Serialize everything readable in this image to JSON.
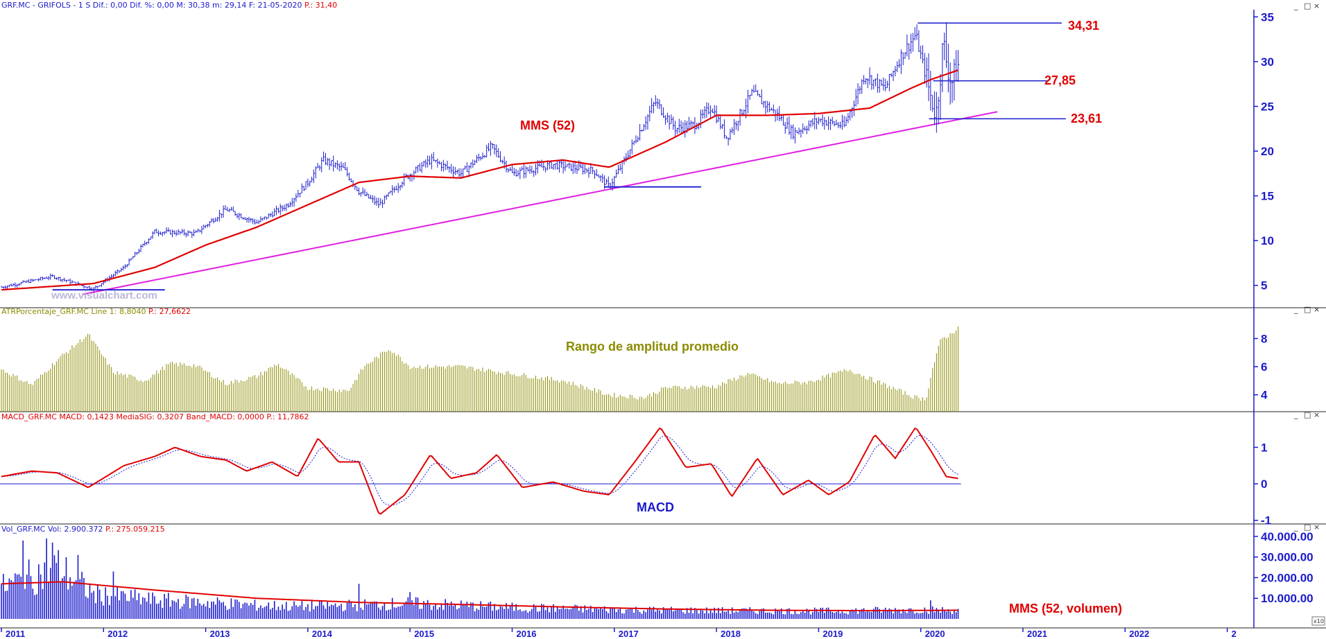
{
  "panels": {
    "price": {
      "header_prefix": "GRF.MC - GRIFOLS -  1 S  Dif.: 0,00  Dif. %: 0,00  M: 30,38  m: 29,14  F: 21-05-2020",
      "header_suffix": "P.: 31,40",
      "watermark": "www.visualchart.com",
      "label_ma": "MMS (52)",
      "level_high": "34,31",
      "level_mid": "27,85",
      "level_low": "23,61"
    },
    "atr": {
      "header_prefix": "ATRPorcentaje_GRF.MC  Line 1: 8,8040",
      "header_suffix": "P.: 27,6622",
      "label": "Rango de amplitud promedio"
    },
    "macd": {
      "header_prefix": "MACD_GRF.MC  MACD: 0,1423  MediaSIG: 0,3207  Band_MACD: 0,0000",
      "header_suffix": "P.: 11,7862",
      "label": "MACD"
    },
    "vol": {
      "header_prefix": "Vol_GRF.MC  Vol: 2.900.372",
      "header_suffix": "P.: 275.059.215",
      "label": "MMS (52, volumen)",
      "scale_marker": "x10"
    }
  },
  "window_controls": [
    "_",
    "□",
    "×"
  ],
  "colors": {
    "price_bars": "#1a1acc",
    "moving_average": "#e00000",
    "trendline": "#e020e0",
    "atr_bars": "#8b8b00",
    "macd_line": "#e00000",
    "macd_signal": "#1a1acc",
    "volume_bars": "#1a1acc",
    "axis_text": "#1a1acc",
    "header_red": "#e00000"
  },
  "chart_data": [
    {
      "type": "candlestick",
      "x_tick_labels": [
        "2011",
        "2012",
        "2013",
        "2014",
        "2015",
        "2016",
        "2017",
        "2018",
        "2019",
        "2020",
        "2021",
        "2022",
        "2"
      ],
      "xlim": [
        "2011-01",
        "2023-01"
      ],
      "ylim": [
        2.5,
        35.8
      ],
      "y_ticks": [
        5,
        10,
        15,
        20,
        25,
        30,
        35
      ],
      "close_anchors": [
        {
          "t": 2011.0,
          "y": 4.8
        },
        {
          "t": 2011.5,
          "y": 6.0
        },
        {
          "t": 2011.9,
          "y": 4.6
        },
        {
          "t": 2012.2,
          "y": 7.0
        },
        {
          "t": 2012.5,
          "y": 11.0
        },
        {
          "t": 2012.9,
          "y": 10.8
        },
        {
          "t": 2013.2,
          "y": 13.5
        },
        {
          "t": 2013.5,
          "y": 12.0
        },
        {
          "t": 2013.8,
          "y": 14.0
        },
        {
          "t": 2014.0,
          "y": 16.5
        },
        {
          "t": 2014.15,
          "y": 19.0
        },
        {
          "t": 2014.35,
          "y": 18.0
        },
        {
          "t": 2014.5,
          "y": 15.5
        },
        {
          "t": 2014.7,
          "y": 14.0
        },
        {
          "t": 2014.95,
          "y": 17.0
        },
        {
          "t": 2015.2,
          "y": 19.0
        },
        {
          "t": 2015.5,
          "y": 17.5
        },
        {
          "t": 2015.8,
          "y": 20.5
        },
        {
          "t": 2016.0,
          "y": 17.5
        },
        {
          "t": 2016.4,
          "y": 18.5
        },
        {
          "t": 2016.8,
          "y": 17.8
        },
        {
          "t": 2016.95,
          "y": 16.0
        },
        {
          "t": 2017.1,
          "y": 19.0
        },
        {
          "t": 2017.4,
          "y": 25.5
        },
        {
          "t": 2017.6,
          "y": 22.5
        },
        {
          "t": 2017.8,
          "y": 23.0
        },
        {
          "t": 2017.95,
          "y": 25.0
        },
        {
          "t": 2018.1,
          "y": 21.5
        },
        {
          "t": 2018.35,
          "y": 26.5
        },
        {
          "t": 2018.6,
          "y": 24.0
        },
        {
          "t": 2018.75,
          "y": 22.0
        },
        {
          "t": 2019.0,
          "y": 23.5
        },
        {
          "t": 2019.25,
          "y": 22.8
        },
        {
          "t": 2019.45,
          "y": 28.5
        },
        {
          "t": 2019.65,
          "y": 27.0
        },
        {
          "t": 2019.8,
          "y": 30.5
        },
        {
          "t": 2019.95,
          "y": 33.0
        },
        {
          "t": 2020.1,
          "y": 26.0
        },
        {
          "t": 2020.15,
          "y": 24.0
        },
        {
          "t": 2020.22,
          "y": 32.0
        },
        {
          "t": 2020.3,
          "y": 27.5
        },
        {
          "t": 2020.38,
          "y": 30.0
        }
      ],
      "ma_anchors": [
        {
          "t": 2011.0,
          "y": 4.5
        },
        {
          "t": 2011.9,
          "y": 5.2
        },
        {
          "t": 2012.5,
          "y": 7.0
        },
        {
          "t": 2013.0,
          "y": 9.5
        },
        {
          "t": 2013.5,
          "y": 11.5
        },
        {
          "t": 2014.0,
          "y": 14.0
        },
        {
          "t": 2014.5,
          "y": 16.5
        },
        {
          "t": 2015.0,
          "y": 17.2
        },
        {
          "t": 2015.5,
          "y": 17.0
        },
        {
          "t": 2016.0,
          "y": 18.5
        },
        {
          "t": 2016.5,
          "y": 19.0
        },
        {
          "t": 2016.95,
          "y": 18.2
        },
        {
          "t": 2017.5,
          "y": 21.0
        },
        {
          "t": 2018.0,
          "y": 24.0
        },
        {
          "t": 2018.5,
          "y": 24.0
        },
        {
          "t": 2019.0,
          "y": 24.2
        },
        {
          "t": 2019.5,
          "y": 24.8
        },
        {
          "t": 2019.9,
          "y": 27.0
        },
        {
          "t": 2020.1,
          "y": 28.0
        },
        {
          "t": 2020.38,
          "y": 29.1
        }
      ],
      "trendline": [
        {
          "t": 2011.8,
          "y": 4.0
        },
        {
          "t": 2020.75,
          "y": 24.4
        }
      ],
      "support_lines": [
        {
          "t0": 2011.5,
          "t1": 2012.6,
          "y": 4.5
        },
        {
          "t0": 2016.9,
          "t1": 2017.85,
          "y": 16.0
        }
      ],
      "levels": [
        {
          "label": "34,31",
          "y": 34.31
        },
        {
          "label": "27,85",
          "y": 27.85
        },
        {
          "label": "23,61",
          "y": 23.61
        }
      ]
    },
    {
      "type": "bar",
      "ylim": [
        2.8,
        9.6
      ],
      "y_ticks": [
        4,
        6,
        8
      ],
      "anchors": [
        {
          "t": 2011.0,
          "y": 5.8
        },
        {
          "t": 2011.3,
          "y": 4.7
        },
        {
          "t": 2011.55,
          "y": 6.5
        },
        {
          "t": 2011.85,
          "y": 8.3
        },
        {
          "t": 2012.1,
          "y": 5.6
        },
        {
          "t": 2012.4,
          "y": 5.0
        },
        {
          "t": 2012.65,
          "y": 6.2
        },
        {
          "t": 2012.9,
          "y": 6.1
        },
        {
          "t": 2013.2,
          "y": 4.8
        },
        {
          "t": 2013.5,
          "y": 5.3
        },
        {
          "t": 2013.7,
          "y": 6.2
        },
        {
          "t": 2014.0,
          "y": 4.5
        },
        {
          "t": 2014.4,
          "y": 4.3
        },
        {
          "t": 2014.55,
          "y": 6.0
        },
        {
          "t": 2014.8,
          "y": 7.3
        },
        {
          "t": 2015.0,
          "y": 6.0
        },
        {
          "t": 2015.5,
          "y": 6.0
        },
        {
          "t": 2016.0,
          "y": 5.5
        },
        {
          "t": 2016.5,
          "y": 5.0
        },
        {
          "t": 2016.95,
          "y": 4.0
        },
        {
          "t": 2017.3,
          "y": 3.8
        },
        {
          "t": 2017.5,
          "y": 4.5
        },
        {
          "t": 2018.0,
          "y": 4.6
        },
        {
          "t": 2018.3,
          "y": 5.5
        },
        {
          "t": 2018.6,
          "y": 4.8
        },
        {
          "t": 2018.9,
          "y": 4.9
        },
        {
          "t": 2019.3,
          "y": 5.8
        },
        {
          "t": 2019.55,
          "y": 5.0
        },
        {
          "t": 2019.95,
          "y": 3.8
        },
        {
          "t": 2020.05,
          "y": 3.7
        },
        {
          "t": 2020.12,
          "y": 6.0
        },
        {
          "t": 2020.2,
          "y": 8.0
        },
        {
          "t": 2020.3,
          "y": 8.3
        },
        {
          "t": 2020.38,
          "y": 9.0
        }
      ]
    },
    {
      "type": "line",
      "ylim": [
        -1.1,
        1.75
      ],
      "y_ticks": [
        1,
        0,
        -1
      ],
      "zero_line": 0,
      "macd_anchors": [
        {
          "t": 2011.0,
          "y": 0.2
        },
        {
          "t": 2011.3,
          "y": 0.35
        },
        {
          "t": 2011.55,
          "y": 0.3
        },
        {
          "t": 2011.85,
          "y": -0.1
        },
        {
          "t": 2012.2,
          "y": 0.5
        },
        {
          "t": 2012.5,
          "y": 0.75
        },
        {
          "t": 2012.7,
          "y": 1.0
        },
        {
          "t": 2012.95,
          "y": 0.75
        },
        {
          "t": 2013.2,
          "y": 0.65
        },
        {
          "t": 2013.4,
          "y": 0.35
        },
        {
          "t": 2013.65,
          "y": 0.6
        },
        {
          "t": 2013.9,
          "y": 0.2
        },
        {
          "t": 2014.1,
          "y": 1.25
        },
        {
          "t": 2014.3,
          "y": 0.6
        },
        {
          "t": 2014.5,
          "y": 0.6
        },
        {
          "t": 2014.7,
          "y": -0.85
        },
        {
          "t": 2014.95,
          "y": -0.3
        },
        {
          "t": 2015.2,
          "y": 0.8
        },
        {
          "t": 2015.4,
          "y": 0.15
        },
        {
          "t": 2015.65,
          "y": 0.3
        },
        {
          "t": 2015.85,
          "y": 0.8
        },
        {
          "t": 2016.1,
          "y": -0.1
        },
        {
          "t": 2016.4,
          "y": 0.05
        },
        {
          "t": 2016.7,
          "y": -0.2
        },
        {
          "t": 2016.95,
          "y": -0.3
        },
        {
          "t": 2017.2,
          "y": 0.6
        },
        {
          "t": 2017.45,
          "y": 1.55
        },
        {
          "t": 2017.7,
          "y": 0.45
        },
        {
          "t": 2017.95,
          "y": 0.55
        },
        {
          "t": 2018.15,
          "y": -0.35
        },
        {
          "t": 2018.4,
          "y": 0.7
        },
        {
          "t": 2018.65,
          "y": -0.3
        },
        {
          "t": 2018.9,
          "y": 0.1
        },
        {
          "t": 2019.1,
          "y": -0.3
        },
        {
          "t": 2019.3,
          "y": 0.05
        },
        {
          "t": 2019.55,
          "y": 1.35
        },
        {
          "t": 2019.75,
          "y": 0.7
        },
        {
          "t": 2019.95,
          "y": 1.55
        },
        {
          "t": 2020.1,
          "y": 0.9
        },
        {
          "t": 2020.25,
          "y": 0.2
        },
        {
          "t": 2020.38,
          "y": 0.14
        }
      ],
      "signal_smoothing_periods": 9
    },
    {
      "type": "bar",
      "ylim": [
        0,
        4200000
      ],
      "y_tick_labels": [
        "10.000.00",
        "20.000.00",
        "30.000.00",
        "40.000.00"
      ],
      "y_ticks": [
        1000000,
        2000000,
        3000000,
        4000000
      ],
      "anchors": [
        {
          "t": 2011.0,
          "y": 1500000
        },
        {
          "t": 2011.55,
          "y": 2500000
        },
        {
          "t": 2011.9,
          "y": 1200000
        },
        {
          "t": 2012.5,
          "y": 900000
        },
        {
          "t": 2013.0,
          "y": 800000
        },
        {
          "t": 2013.5,
          "y": 650000
        },
        {
          "t": 2014.0,
          "y": 600000
        },
        {
          "t": 2015.0,
          "y": 750000
        },
        {
          "t": 2016.0,
          "y": 550000
        },
        {
          "t": 2017.0,
          "y": 450000
        },
        {
          "t": 2018.0,
          "y": 400000
        },
        {
          "t": 2019.0,
          "y": 380000
        },
        {
          "t": 2020.0,
          "y": 450000
        },
        {
          "t": 2020.38,
          "y": 400000
        }
      ],
      "ma_anchors": [
        {
          "t": 2011.0,
          "y": 1700000
        },
        {
          "t": 2011.6,
          "y": 1800000
        },
        {
          "t": 2012.5,
          "y": 1400000
        },
        {
          "t": 2013.5,
          "y": 1000000
        },
        {
          "t": 2014.5,
          "y": 800000
        },
        {
          "t": 2015.5,
          "y": 700000
        },
        {
          "t": 2016.5,
          "y": 580000
        },
        {
          "t": 2017.5,
          "y": 480000
        },
        {
          "t": 2018.5,
          "y": 420000
        },
        {
          "t": 2019.5,
          "y": 400000
        },
        {
          "t": 2020.38,
          "y": 420000
        }
      ],
      "spikes": [
        {
          "t": 2011.22,
          "y": 3800000
        },
        {
          "t": 2011.45,
          "y": 3900000
        },
        {
          "t": 2011.5,
          "y": 3700000
        },
        {
          "t": 2011.75,
          "y": 3100000
        },
        {
          "t": 2012.1,
          "y": 2300000
        },
        {
          "t": 2014.5,
          "y": 1700000
        },
        {
          "t": 2015.0,
          "y": 1300000
        },
        {
          "t": 2020.1,
          "y": 900000
        }
      ]
    }
  ]
}
